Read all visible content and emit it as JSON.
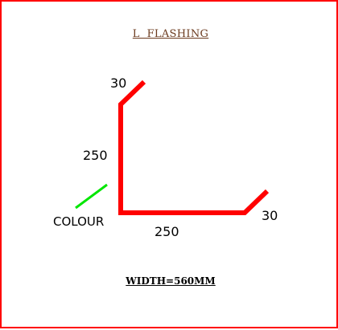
{
  "title": "L  FLASHING",
  "colors": {
    "border": "#ff0000",
    "flashing": "#ff0000",
    "colour_side": "#00e600",
    "title_text": "#6b3a1e",
    "text": "#000000"
  },
  "dimensions": {
    "top_return": "30",
    "vertical_leg": "250",
    "horizontal_leg": "250",
    "end_return": "30"
  },
  "colour_label": "COLOUR",
  "width_label": "WIDTH=560MM"
}
